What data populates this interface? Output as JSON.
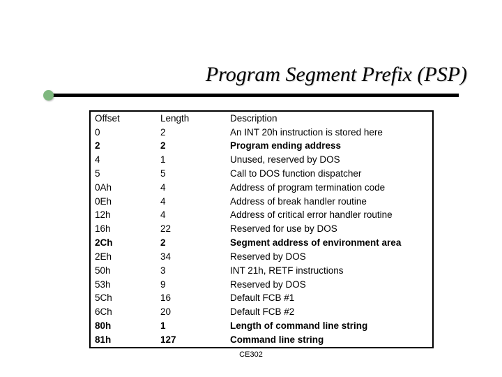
{
  "title": "Program Segment Prefix (PSP)",
  "footer": "CE302",
  "accent_dot_color": "#7fb87f",
  "columns": [
    "Offset",
    "Length",
    "Description"
  ],
  "rows": [
    {
      "offset": "Offset",
      "length": "Length",
      "desc": "Description",
      "bold": false,
      "header": true
    },
    {
      "offset": "0",
      "length": "2",
      "desc": "An INT 20h instruction is stored here",
      "bold": false
    },
    {
      "offset": "2",
      "length": "2",
      "desc": "Program ending address",
      "bold": true
    },
    {
      "offset": "4",
      "length": "1",
      "desc": "Unused, reserved by DOS",
      "bold": false
    },
    {
      "offset": "5",
      "length": "5",
      "desc": "Call to DOS function dispatcher",
      "bold": false
    },
    {
      "offset": "0Ah",
      "length": "4",
      "desc": "Address of program termination code",
      "bold": false
    },
    {
      "offset": "0Eh",
      "length": "4",
      "desc": "Address of break handler routine",
      "bold": false
    },
    {
      "offset": "12h",
      "length": "4",
      "desc": "Address of critical error handler routine",
      "bold": false
    },
    {
      "offset": "16h",
      "length": "22",
      "desc": "Reserved for use by DOS",
      "bold": false
    },
    {
      "offset": "2Ch",
      "length": "2",
      "desc": "Segment address of environment area",
      "bold": true
    },
    {
      "offset": "2Eh",
      "length": "34",
      "desc": "Reserved by DOS",
      "bold": false
    },
    {
      "offset": "50h",
      "length": "3",
      "desc": "INT 21h, RETF instructions",
      "bold": false
    },
    {
      "offset": "53h",
      "length": "9",
      "desc": "Reserved by DOS",
      "bold": false
    },
    {
      "offset": "5Ch",
      "length": "16",
      "desc": "Default FCB #1",
      "bold": false
    },
    {
      "offset": "6Ch",
      "length": "20",
      "desc": "Default FCB #2",
      "bold": false
    },
    {
      "offset": "80h",
      "length": "1",
      "desc": "Length of command line string",
      "bold": true
    },
    {
      "offset": "81h",
      "length": "127",
      "desc": "Command line string",
      "bold": true
    }
  ]
}
